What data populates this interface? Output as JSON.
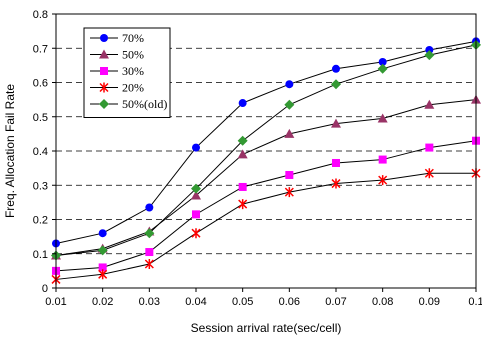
{
  "chart_data": {
    "type": "line",
    "title": "",
    "xlabel": "Session arrival rate(sec/cell)",
    "ylabel": "Freq. Allocation Fail Rate",
    "x": [
      0.01,
      0.02,
      0.03,
      0.04,
      0.05,
      0.06,
      0.07,
      0.08,
      0.09,
      0.1
    ],
    "x_tick_labels": [
      "0.01",
      "0.02",
      "0.03",
      "0.04",
      "0.05",
      "0.06",
      "0.07",
      "0.08",
      "0.09",
      "0.1"
    ],
    "ylim": [
      0,
      0.8
    ],
    "y_ticks": [
      0,
      0.1,
      0.2,
      0.3,
      0.4,
      0.5,
      0.6,
      0.7,
      0.8
    ],
    "y_tick_labels": [
      "0",
      "0.1",
      "0.2",
      "0.3",
      "0.4",
      "0.5",
      "0.6",
      "0.7",
      "0.8"
    ],
    "grid": "horizontal dashed",
    "legend_position": "top-left",
    "series": [
      {
        "name": "70%",
        "color": "#0000ff",
        "marker": "circle",
        "values": [
          0.13,
          0.16,
          0.235,
          0.41,
          0.54,
          0.595,
          0.64,
          0.66,
          0.695,
          0.72
        ]
      },
      {
        "name": "50%",
        "color": "#993366",
        "marker": "triangle",
        "values": [
          0.095,
          0.115,
          0.165,
          0.27,
          0.39,
          0.45,
          0.48,
          0.495,
          0.535,
          0.55
        ]
      },
      {
        "name": "30%",
        "color": "#ff00ff",
        "marker": "square",
        "values": [
          0.05,
          0.06,
          0.105,
          0.215,
          0.295,
          0.33,
          0.365,
          0.375,
          0.41,
          0.43
        ]
      },
      {
        "name": "20%",
        "color": "#ff0000",
        "marker": "star",
        "values": [
          0.025,
          0.04,
          0.07,
          0.16,
          0.245,
          0.28,
          0.305,
          0.315,
          0.335,
          0.335
        ]
      },
      {
        "name": "50%(old)",
        "color": "#339933",
        "marker": "diamond",
        "values": [
          0.095,
          0.11,
          0.16,
          0.29,
          0.43,
          0.535,
          0.595,
          0.64,
          0.68,
          0.71
        ]
      }
    ]
  }
}
